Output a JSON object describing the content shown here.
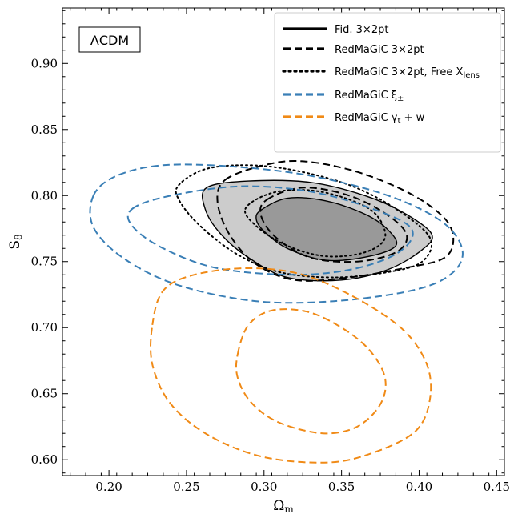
{
  "chart_data": {
    "type": "contour",
    "xlabel": "Ω",
    "xlabel_sub": "m",
    "ylabel": "S",
    "ylabel_sub": "8",
    "xlim": [
      0.17,
      0.455
    ],
    "ylim": [
      0.588,
      0.942
    ],
    "xticks": [
      0.2,
      0.25,
      0.3,
      0.35,
      0.4,
      0.45
    ],
    "xtick_labels": [
      "0.20",
      "0.25",
      "0.30",
      "0.35",
      "0.40",
      "0.45"
    ],
    "yticks": [
      0.6,
      0.65,
      0.7,
      0.75,
      0.8,
      0.85,
      0.9
    ],
    "ytick_labels": [
      "0.60",
      "0.65",
      "0.70",
      "0.75",
      "0.80",
      "0.85",
      "0.90"
    ],
    "tag": "ΛCDM",
    "legend_position": "top-right",
    "colors": {
      "fiducial_outer": "#cccccc",
      "fiducial_inner": "#999999",
      "black": "#000000",
      "blue": "#3a7fb6",
      "orange": "#f08a16"
    },
    "series": [
      {
        "name": "Fid. 3×2pt",
        "style": "solid",
        "color": "#000000",
        "filled": true,
        "contours": [
          {
            "level": "95%",
            "points": [
              [
                0.263,
                0.806
              ],
              [
                0.29,
                0.811
              ],
              [
                0.33,
                0.81
              ],
              [
                0.365,
                0.8
              ],
              [
                0.39,
                0.787
              ],
              [
                0.408,
                0.771
              ],
              [
                0.402,
                0.759
              ],
              [
                0.38,
                0.744
              ],
              [
                0.35,
                0.736
              ],
              [
                0.315,
                0.738
              ],
              [
                0.29,
                0.753
              ],
              [
                0.272,
                0.771
              ],
              [
                0.262,
                0.79
              ]
            ]
          },
          {
            "level": "68%",
            "points": [
              [
                0.298,
                0.789
              ],
              [
                0.315,
                0.798
              ],
              [
                0.34,
                0.796
              ],
              [
                0.365,
                0.786
              ],
              [
                0.38,
                0.774
              ],
              [
                0.385,
                0.762
              ],
              [
                0.368,
                0.754
              ],
              [
                0.34,
                0.751
              ],
              [
                0.315,
                0.76
              ],
              [
                0.3,
                0.773
              ],
              [
                0.295,
                0.782
              ]
            ]
          }
        ]
      },
      {
        "name": "RedMaGiC 3×2pt",
        "style": "dashed",
        "color": "#000000",
        "filled": false,
        "contours": [
          {
            "level": "95%",
            "points": [
              [
                0.275,
                0.812
              ],
              [
                0.3,
                0.823
              ],
              [
                0.325,
                0.826
              ],
              [
                0.36,
                0.818
              ],
              [
                0.395,
                0.801
              ],
              [
                0.417,
                0.782
              ],
              [
                0.422,
                0.765
              ],
              [
                0.415,
                0.752
              ],
              [
                0.39,
                0.745
              ],
              [
                0.355,
                0.738
              ],
              [
                0.32,
                0.736
              ],
              [
                0.295,
                0.748
              ],
              [
                0.278,
                0.77
              ],
              [
                0.27,
                0.795
              ]
            ]
          },
          {
            "level": "68%",
            "points": [
              [
                0.302,
                0.797
              ],
              [
                0.325,
                0.806
              ],
              [
                0.355,
                0.8
              ],
              [
                0.38,
                0.785
              ],
              [
                0.392,
                0.77
              ],
              [
                0.385,
                0.757
              ],
              [
                0.36,
                0.75
              ],
              [
                0.33,
                0.753
              ],
              [
                0.308,
                0.768
              ],
              [
                0.298,
                0.785
              ]
            ]
          }
        ]
      },
      {
        "name": "RedMaGiC 3×2pt, Free X",
        "name_sub": "lens",
        "style": "dotted",
        "color": "#000000",
        "filled": false,
        "contours": [
          {
            "level": "95%",
            "points": [
              [
                0.245,
                0.808
              ],
              [
                0.262,
                0.82
              ],
              [
                0.29,
                0.823
              ],
              [
                0.32,
                0.819
              ],
              [
                0.355,
                0.808
              ],
              [
                0.385,
                0.79
              ],
              [
                0.407,
                0.768
              ],
              [
                0.402,
                0.75
              ],
              [
                0.38,
                0.742
              ],
              [
                0.345,
                0.738
              ],
              [
                0.31,
                0.742
              ],
              [
                0.282,
                0.756
              ],
              [
                0.258,
                0.778
              ],
              [
                0.245,
                0.797
              ]
            ]
          },
          {
            "level": "68%",
            "points": [
              [
                0.288,
                0.79
              ],
              [
                0.305,
                0.802
              ],
              [
                0.33,
                0.804
              ],
              [
                0.355,
                0.797
              ],
              [
                0.372,
                0.786
              ],
              [
                0.378,
                0.768
              ],
              [
                0.365,
                0.757
              ],
              [
                0.34,
                0.754
              ],
              [
                0.315,
                0.762
              ],
              [
                0.296,
                0.776
              ]
            ]
          }
        ]
      },
      {
        "name": "RedMaGiC ξ",
        "name_sub": "±",
        "style": "dashed",
        "color": "#3a7fb6",
        "filled": false,
        "contours": [
          {
            "level": "95%",
            "points": [
              [
                0.19,
                0.8
              ],
              [
                0.205,
                0.815
              ],
              [
                0.235,
                0.823
              ],
              [
                0.28,
                0.822
              ],
              [
                0.33,
                0.815
              ],
              [
                0.38,
                0.8
              ],
              [
                0.415,
                0.78
              ],
              [
                0.428,
                0.758
              ],
              [
                0.42,
                0.74
              ],
              [
                0.395,
                0.728
              ],
              [
                0.345,
                0.72
              ],
              [
                0.295,
                0.72
              ],
              [
                0.245,
                0.732
              ],
              [
                0.21,
                0.752
              ],
              [
                0.19,
                0.776
              ]
            ]
          },
          {
            "level": "68%",
            "points": [
              [
                0.215,
                0.79
              ],
              [
                0.24,
                0.8
              ],
              [
                0.285,
                0.807
              ],
              [
                0.33,
                0.803
              ],
              [
                0.37,
                0.79
              ],
              [
                0.395,
                0.775
              ],
              [
                0.388,
                0.758
              ],
              [
                0.36,
                0.745
              ],
              [
                0.32,
                0.74
              ],
              [
                0.27,
                0.745
              ],
              [
                0.235,
                0.76
              ],
              [
                0.215,
                0.777
              ]
            ]
          }
        ]
      },
      {
        "name": "RedMaGiC γ",
        "name_sub": "t",
        "name_suffix": " + w",
        "style": "dashed",
        "color": "#f08a16",
        "filled": false,
        "contours": [
          {
            "level": "95%",
            "points": [
              [
                0.228,
                0.702
              ],
              [
                0.235,
                0.728
              ],
              [
                0.255,
                0.74
              ],
              [
                0.29,
                0.745
              ],
              [
                0.325,
                0.74
              ],
              [
                0.36,
                0.722
              ],
              [
                0.39,
                0.698
              ],
              [
                0.405,
                0.672
              ],
              [
                0.407,
                0.646
              ],
              [
                0.398,
                0.622
              ],
              [
                0.372,
                0.606
              ],
              [
                0.342,
                0.598
              ],
              [
                0.3,
                0.602
              ],
              [
                0.265,
                0.618
              ],
              [
                0.24,
                0.642
              ],
              [
                0.228,
                0.672
              ]
            ]
          },
          {
            "level": "68%",
            "points": [
              [
                0.283,
                0.68
              ],
              [
                0.29,
                0.702
              ],
              [
                0.305,
                0.713
              ],
              [
                0.328,
                0.712
              ],
              [
                0.35,
                0.7
              ],
              [
                0.368,
                0.683
              ],
              [
                0.378,
                0.662
              ],
              [
                0.375,
                0.642
              ],
              [
                0.36,
                0.625
              ],
              [
                0.338,
                0.62
              ],
              [
                0.31,
                0.628
              ],
              [
                0.292,
                0.643
              ],
              [
                0.283,
                0.662
              ]
            ]
          }
        ]
      }
    ]
  }
}
